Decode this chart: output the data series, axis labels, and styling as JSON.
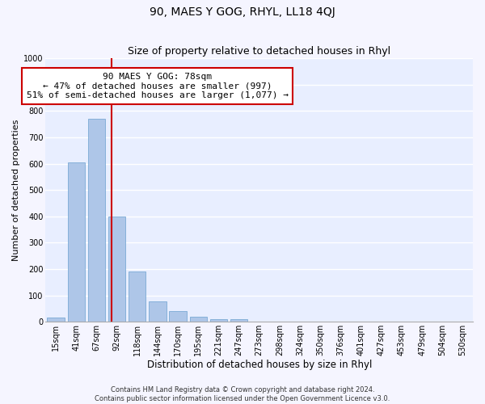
{
  "title": "90, MAES Y GOG, RHYL, LL18 4QJ",
  "subtitle": "Size of property relative to detached houses in Rhyl",
  "xlabel": "Distribution of detached houses by size in Rhyl",
  "ylabel": "Number of detached properties",
  "bar_labels": [
    "15sqm",
    "41sqm",
    "67sqm",
    "92sqm",
    "118sqm",
    "144sqm",
    "170sqm",
    "195sqm",
    "221sqm",
    "247sqm",
    "273sqm",
    "298sqm",
    "324sqm",
    "350sqm",
    "376sqm",
    "401sqm",
    "427sqm",
    "453sqm",
    "479sqm",
    "504sqm",
    "530sqm"
  ],
  "bar_values": [
    15,
    605,
    770,
    400,
    190,
    78,
    40,
    18,
    10,
    10,
    0,
    0,
    0,
    0,
    0,
    0,
    0,
    0,
    0,
    0,
    0
  ],
  "bar_color": "#aec6e8",
  "bar_edgecolor": "#7baad4",
  "vline_x_idx": 2.75,
  "vline_color": "#cc0000",
  "ylim": [
    0,
    1000
  ],
  "yticks": [
    0,
    100,
    200,
    300,
    400,
    500,
    600,
    700,
    800,
    900,
    1000
  ],
  "annotation_box_text": "90 MAES Y GOG: 78sqm\n← 47% of detached houses are smaller (997)\n51% of semi-detached houses are larger (1,077) →",
  "annotation_box_color": "#ffffff",
  "annotation_box_edgecolor": "#cc0000",
  "footer_line1": "Contains HM Land Registry data © Crown copyright and database right 2024.",
  "footer_line2": "Contains public sector information licensed under the Open Government Licence v3.0.",
  "background_color": "#f5f5ff",
  "plot_bg_color": "#e8eeff",
  "grid_color": "#ffffff",
  "title_fontsize": 10,
  "subtitle_fontsize": 9,
  "xlabel_fontsize": 8.5,
  "ylabel_fontsize": 8,
  "tick_fontsize": 7,
  "footer_fontsize": 6,
  "annotation_fontsize": 8
}
